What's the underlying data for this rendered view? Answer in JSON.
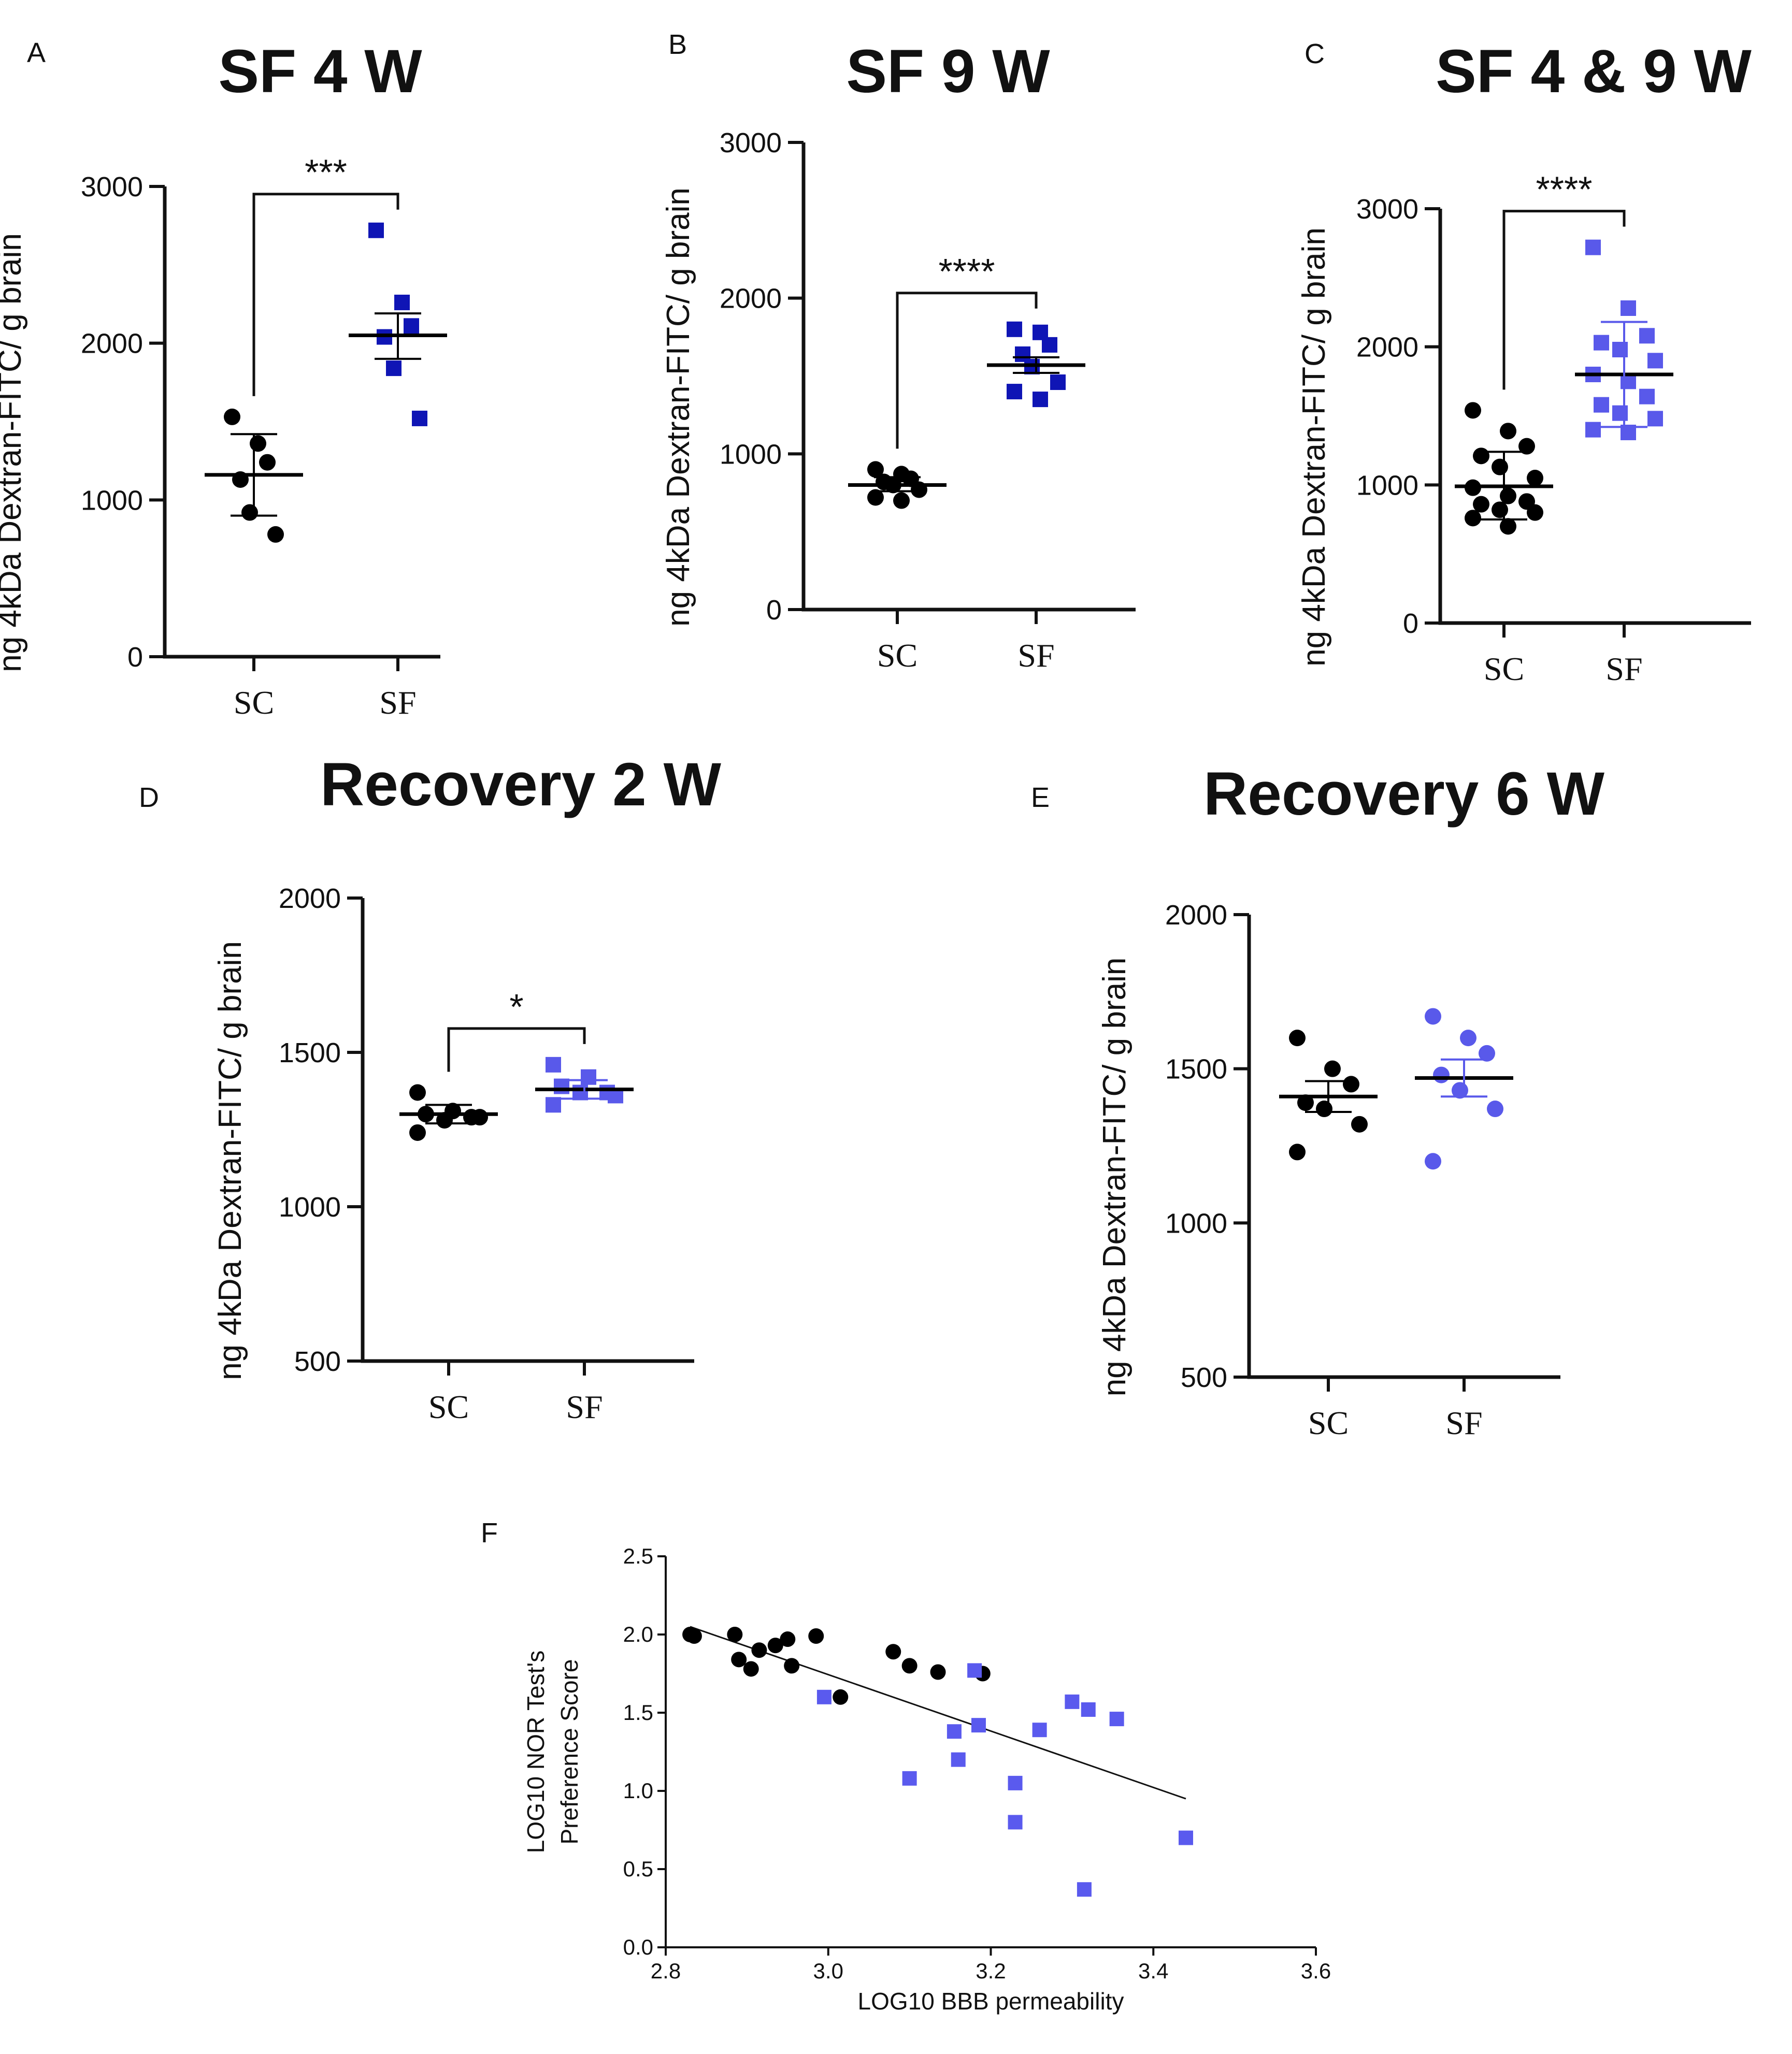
{
  "colors": {
    "sc": "#000000",
    "sf_dark": "#0f15b5",
    "sf_light": "#5959ea",
    "f_square": "#5a5aee"
  },
  "chart_data": [
    {
      "panel": "A",
      "type": "scatter",
      "title": "SF 4 W",
      "ylabel": "ng 4kDa Dextran-FITC/ g brain",
      "categories": [
        "SC",
        "SF"
      ],
      "ylim": [
        0,
        3000
      ],
      "yticks": [
        "0",
        "1000",
        "2000",
        "3000"
      ],
      "significance": "***",
      "series": [
        {
          "name": "SC",
          "marker": "circle",
          "color": "#000000",
          "values": [
            1530,
            1360,
            1240,
            1130,
            920,
            780
          ],
          "mean": 1160,
          "err": [
            900,
            1420
          ]
        },
        {
          "name": "SF",
          "marker": "square",
          "color": "#0f15b5",
          "values": [
            2720,
            2260,
            2110,
            2040,
            1840,
            1520
          ],
          "mean": 2050,
          "err": [
            1900,
            2190
          ]
        }
      ]
    },
    {
      "panel": "B",
      "type": "scatter",
      "title": "SF 9 W",
      "ylabel": "ng 4kDa Dextran-FITC/ g brain",
      "categories": [
        "SC",
        "SF"
      ],
      "ylim": [
        0,
        3000
      ],
      "yticks": [
        "0",
        "1000",
        "2000",
        "3000"
      ],
      "significance": "****",
      "series": [
        {
          "name": "SC",
          "marker": "circle",
          "color": "#000000",
          "values": [
            900,
            870,
            840,
            820,
            800,
            770,
            720,
            700
          ],
          "mean": 800,
          "err": [
            760,
            850
          ]
        },
        {
          "name": "SF",
          "marker": "square",
          "color": "#0f15b5",
          "values": [
            1800,
            1780,
            1700,
            1640,
            1560,
            1460,
            1400,
            1350
          ],
          "mean": 1570,
          "err": [
            1520,
            1620
          ]
        }
      ]
    },
    {
      "panel": "C",
      "type": "scatter",
      "title": "SF 4 & 9  W",
      "ylabel": "ng 4kDa Dextran-FITC/ g brain",
      "categories": [
        "SC",
        "SF"
      ],
      "ylim": [
        0,
        3000
      ],
      "yticks": [
        "0",
        "1000",
        "2000",
        "3000"
      ],
      "significance": "****",
      "series": [
        {
          "name": "SC",
          "marker": "circle",
          "color": "#000000",
          "values": [
            1540,
            1390,
            1280,
            1210,
            1130,
            1050,
            980,
            920,
            880,
            860,
            820,
            800,
            760,
            700
          ],
          "mean": 990,
          "err": [
            750,
            1240
          ]
        },
        {
          "name": "SF",
          "marker": "square",
          "color": "#5959ea",
          "values": [
            2720,
            2280,
            2080,
            2030,
            1980,
            1900,
            1800,
            1750,
            1640,
            1580,
            1520,
            1480,
            1400,
            1380
          ],
          "mean": 1800,
          "err": [
            1420,
            2180
          ]
        }
      ]
    },
    {
      "panel": "D",
      "type": "scatter",
      "title": "Recovery 2 W",
      "ylabel": "ng 4kDa Dextran-FITC/ g brain",
      "categories": [
        "SC",
        "SF"
      ],
      "ylim": [
        500,
        2000
      ],
      "yticks": [
        "500",
        "1000",
        "1500",
        "2000"
      ],
      "significance": "*",
      "series": [
        {
          "name": "SC",
          "marker": "circle",
          "color": "#000000",
          "values": [
            1370,
            1310,
            1290,
            1300,
            1280,
            1290,
            1240
          ],
          "mean": 1300,
          "err": [
            1270,
            1330
          ]
        },
        {
          "name": "SF",
          "marker": "square",
          "color": "#5959ea",
          "values": [
            1460,
            1420,
            1370,
            1390,
            1370,
            1360,
            1330
          ],
          "mean": 1380,
          "err": [
            1350,
            1410
          ]
        }
      ]
    },
    {
      "panel": "E",
      "type": "scatter",
      "title": "Recovery 6 W",
      "ylabel": "ng 4kDa Dextran-FITC/ g brain",
      "categories": [
        "SC",
        "SF"
      ],
      "ylim": [
        500,
        2000
      ],
      "yticks": [
        "500",
        "1000",
        "1500",
        "2000"
      ],
      "significance": "",
      "series": [
        {
          "name": "SC",
          "marker": "circle",
          "color": "#000000",
          "values": [
            1600,
            1500,
            1450,
            1390,
            1370,
            1320,
            1230
          ],
          "mean": 1410,
          "err": [
            1360,
            1460
          ]
        },
        {
          "name": "SF",
          "marker": "circle",
          "color": "#5959ea",
          "values": [
            1670,
            1600,
            1550,
            1480,
            1430,
            1370,
            1200
          ],
          "mean": 1470,
          "err": [
            1410,
            1530
          ]
        }
      ]
    },
    {
      "panel": "F",
      "type": "scatter",
      "xlabel": "LOG10 BBB permeability",
      "ylabel_line1": "LOG10 NOR Test's",
      "ylabel_line2": "Preference Score",
      "xlim": [
        2.8,
        3.6
      ],
      "ylim": [
        0.0,
        2.5
      ],
      "xticks": [
        "2.8",
        "3.0",
        "3.2",
        "3.4",
        "3.6"
      ],
      "yticks": [
        "0.0",
        "0.5",
        "1.0",
        "1.5",
        "2.0",
        "2.5"
      ],
      "regression": {
        "x": [
          2.83,
          3.44
        ],
        "y": [
          2.05,
          0.95
        ]
      },
      "series": [
        {
          "name": "SC",
          "marker": "circle",
          "color": "#000000",
          "x": [
            2.83,
            2.835,
            2.885,
            2.89,
            2.905,
            2.915,
            2.935,
            2.955,
            2.95,
            2.985,
            3.015,
            3.08,
            3.1,
            3.135,
            3.19
          ],
          "y": [
            2.0,
            1.99,
            2.0,
            1.84,
            1.78,
            1.9,
            1.93,
            1.8,
            1.97,
            1.99,
            1.6,
            1.89,
            1.8,
            1.76,
            1.75
          ]
        },
        {
          "name": "SF",
          "marker": "square",
          "color": "#5a5aee",
          "x": [
            2.995,
            3.1,
            3.155,
            3.16,
            3.18,
            3.185,
            3.23,
            3.23,
            3.26,
            3.3,
            3.32,
            3.315,
            3.355,
            3.44
          ],
          "y": [
            1.6,
            1.08,
            1.38,
            1.2,
            1.77,
            1.42,
            1.05,
            0.8,
            1.39,
            1.57,
            1.52,
            0.37,
            1.46,
            0.7
          ]
        }
      ]
    }
  ]
}
